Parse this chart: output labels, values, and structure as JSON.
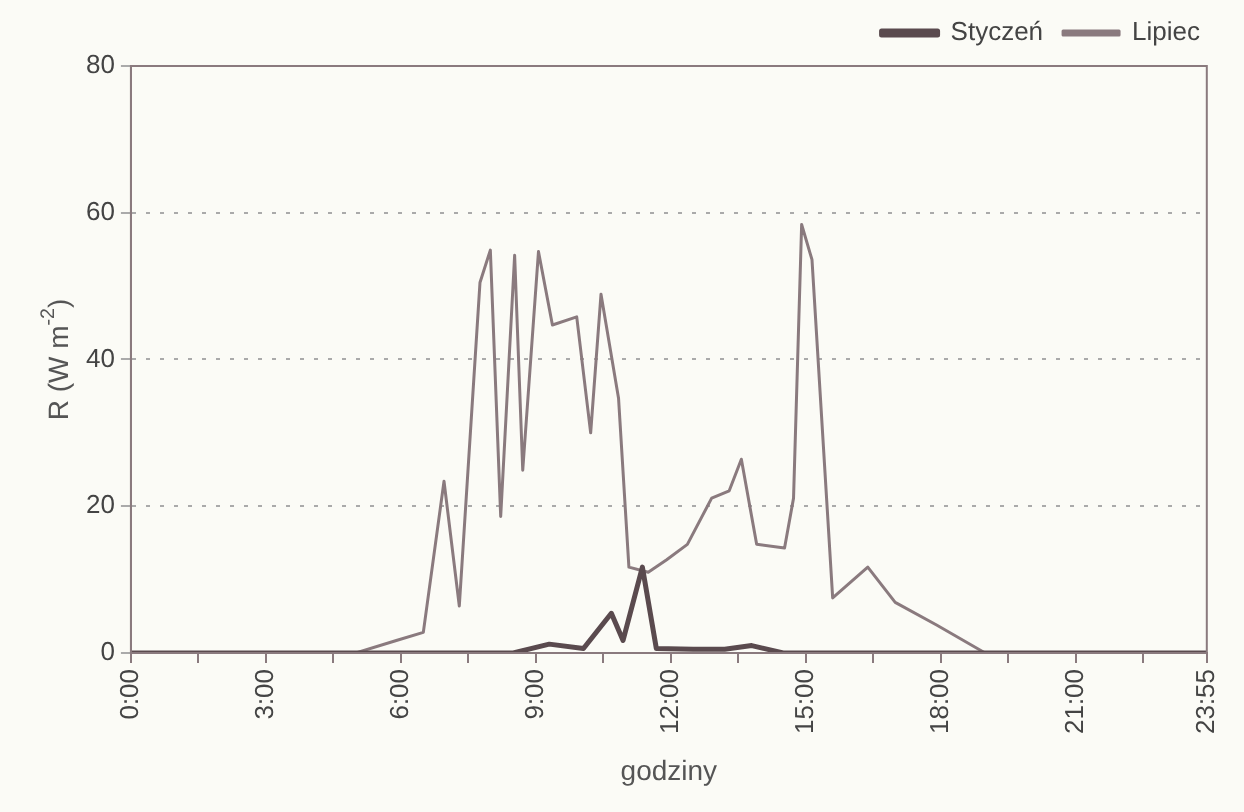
{
  "chart_data": {
    "type": "line",
    "xlabel": "godziny",
    "ylabel": "R (W m$^{-2}$)",
    "xlim": [
      0,
      23.9167
    ],
    "xticks": [
      {
        "value": 0,
        "label": "0:00"
      },
      {
        "value": 1.5,
        "label": null
      },
      {
        "value": 3,
        "label": "3:00"
      },
      {
        "value": 4.5,
        "label": null
      },
      {
        "value": 6,
        "label": "6:00"
      },
      {
        "value": 7.5,
        "label": null
      },
      {
        "value": 9,
        "label": "9:00"
      },
      {
        "value": 10.5,
        "label": null
      },
      {
        "value": 12,
        "label": "12:00"
      },
      {
        "value": 13.5,
        "label": null
      },
      {
        "value": 15,
        "label": "15:00"
      },
      {
        "value": 16.5,
        "label": null
      },
      {
        "value": 18,
        "label": "18:00"
      },
      {
        "value": 19.5,
        "label": null
      },
      {
        "value": 21,
        "label": "21:00"
      },
      {
        "value": 22.5,
        "label": null
      },
      {
        "value": 23.9167,
        "label": "23:55"
      }
    ],
    "ylim": [
      0,
      80
    ],
    "yticks": [
      0,
      20,
      40,
      60,
      80
    ],
    "grid": "y",
    "legend": "top right",
    "marker": "none",
    "line_style": "solid",
    "series": [
      {
        "name": "Styczeń",
        "color": "#5a4a4e",
        "x": [
          0,
          8.5,
          9.3,
          10.06,
          10.68,
          10.94,
          11.37,
          11.68,
          12.5,
          13.2,
          13.8,
          14.5,
          23.9167
        ],
        "values": [
          0,
          0,
          1.2,
          0.6,
          5.4,
          1.7,
          11.7,
          0.6,
          0.5,
          0.5,
          1,
          0,
          0
        ]
      },
      {
        "name": "Lipiec",
        "color": "#8a7a7e",
        "x": [
          0,
          5.0,
          5.9,
          6.5,
          6.96,
          7.3,
          7.76,
          7.99,
          8.22,
          8.53,
          8.71,
          9.06,
          9.37,
          9.91,
          10.22,
          10.45,
          10.84,
          11.07,
          11.5,
          11.91,
          12.37,
          12.91,
          13.3,
          13.57,
          13.91,
          14.53,
          14.73,
          14.91,
          15.14,
          15.6,
          16.38,
          16.99,
          17.91,
          18.99,
          23.9167
        ],
        "values": [
          0,
          0,
          1.7,
          2.8,
          23.4,
          6.4,
          50.5,
          54.9,
          18.6,
          54.2,
          24.9,
          54.7,
          44.7,
          45.8,
          30,
          48.9,
          34.7,
          11.7,
          11,
          12.7,
          14.8,
          21.1,
          22.1,
          26.4,
          14.8,
          14.3,
          21.1,
          58.4,
          53.6,
          7.5,
          11.7,
          6.9,
          3.8,
          0,
          0
        ]
      }
    ]
  }
}
